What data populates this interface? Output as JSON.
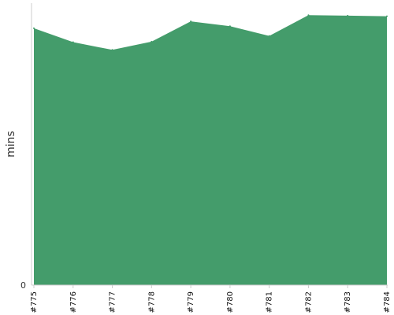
{
  "chart_data": {
    "type": "area",
    "title": "",
    "xlabel": "",
    "ylabel": "mins",
    "categories": [
      "#775",
      "#776",
      "#777",
      "#778",
      "#779",
      "#780",
      "#781",
      "#782",
      "#783",
      "#784"
    ],
    "series": [
      {
        "values": [
          90.2,
          85.3,
          82.6,
          85.5,
          92.6,
          90.9,
          87.5,
          94.8,
          94.6,
          94.4
        ]
      }
    ],
    "ylim": [
      0,
      99
    ],
    "y_ticks": [
      0
    ],
    "y_tick_labels": [
      "0"
    ],
    "grid": false,
    "legend": "none",
    "colors": {
      "area": "#449c6b",
      "axis": "#cccccc"
    }
  }
}
